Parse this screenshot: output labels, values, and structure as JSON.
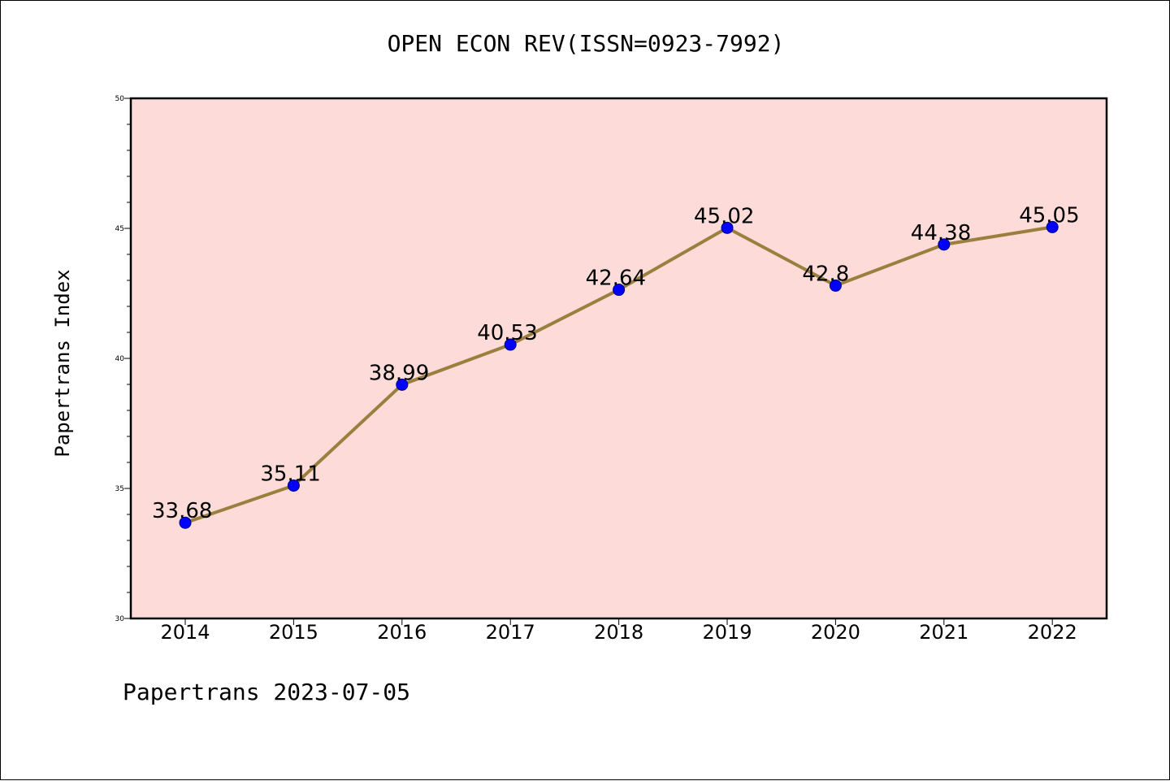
{
  "title": "OPEN ECON REV(ISSN=0923-7992)",
  "ylabel": "Papertrans Index",
  "footer": "Papertrans 2023-07-05",
  "colors": {
    "plot_background": "#fddbd8",
    "line": "#9b7f3e",
    "marker": "#0000ff",
    "axes": "#000000"
  },
  "chart_data": {
    "type": "line",
    "title": "OPEN ECON REV(ISSN=0923-7992)",
    "xlabel": "",
    "ylabel": "Papertrans Index",
    "categories": [
      "2014",
      "2015",
      "2016",
      "2017",
      "2018",
      "2019",
      "2020",
      "2021",
      "2022"
    ],
    "series": [
      {
        "values": [
          33.68,
          35.11,
          38.99,
          40.53,
          42.64,
          45.02,
          42.8,
          44.38,
          45.05
        ],
        "labels": [
          "33.68",
          "35.11",
          "38.99",
          "40.53",
          "42.64",
          "45.02",
          "42.8",
          "44.38",
          "45.05"
        ]
      }
    ],
    "ylim": [
      30,
      50
    ],
    "yticks": [
      "30",
      "35",
      "40",
      "45",
      "50"
    ],
    "grid": false,
    "legend": "none"
  }
}
